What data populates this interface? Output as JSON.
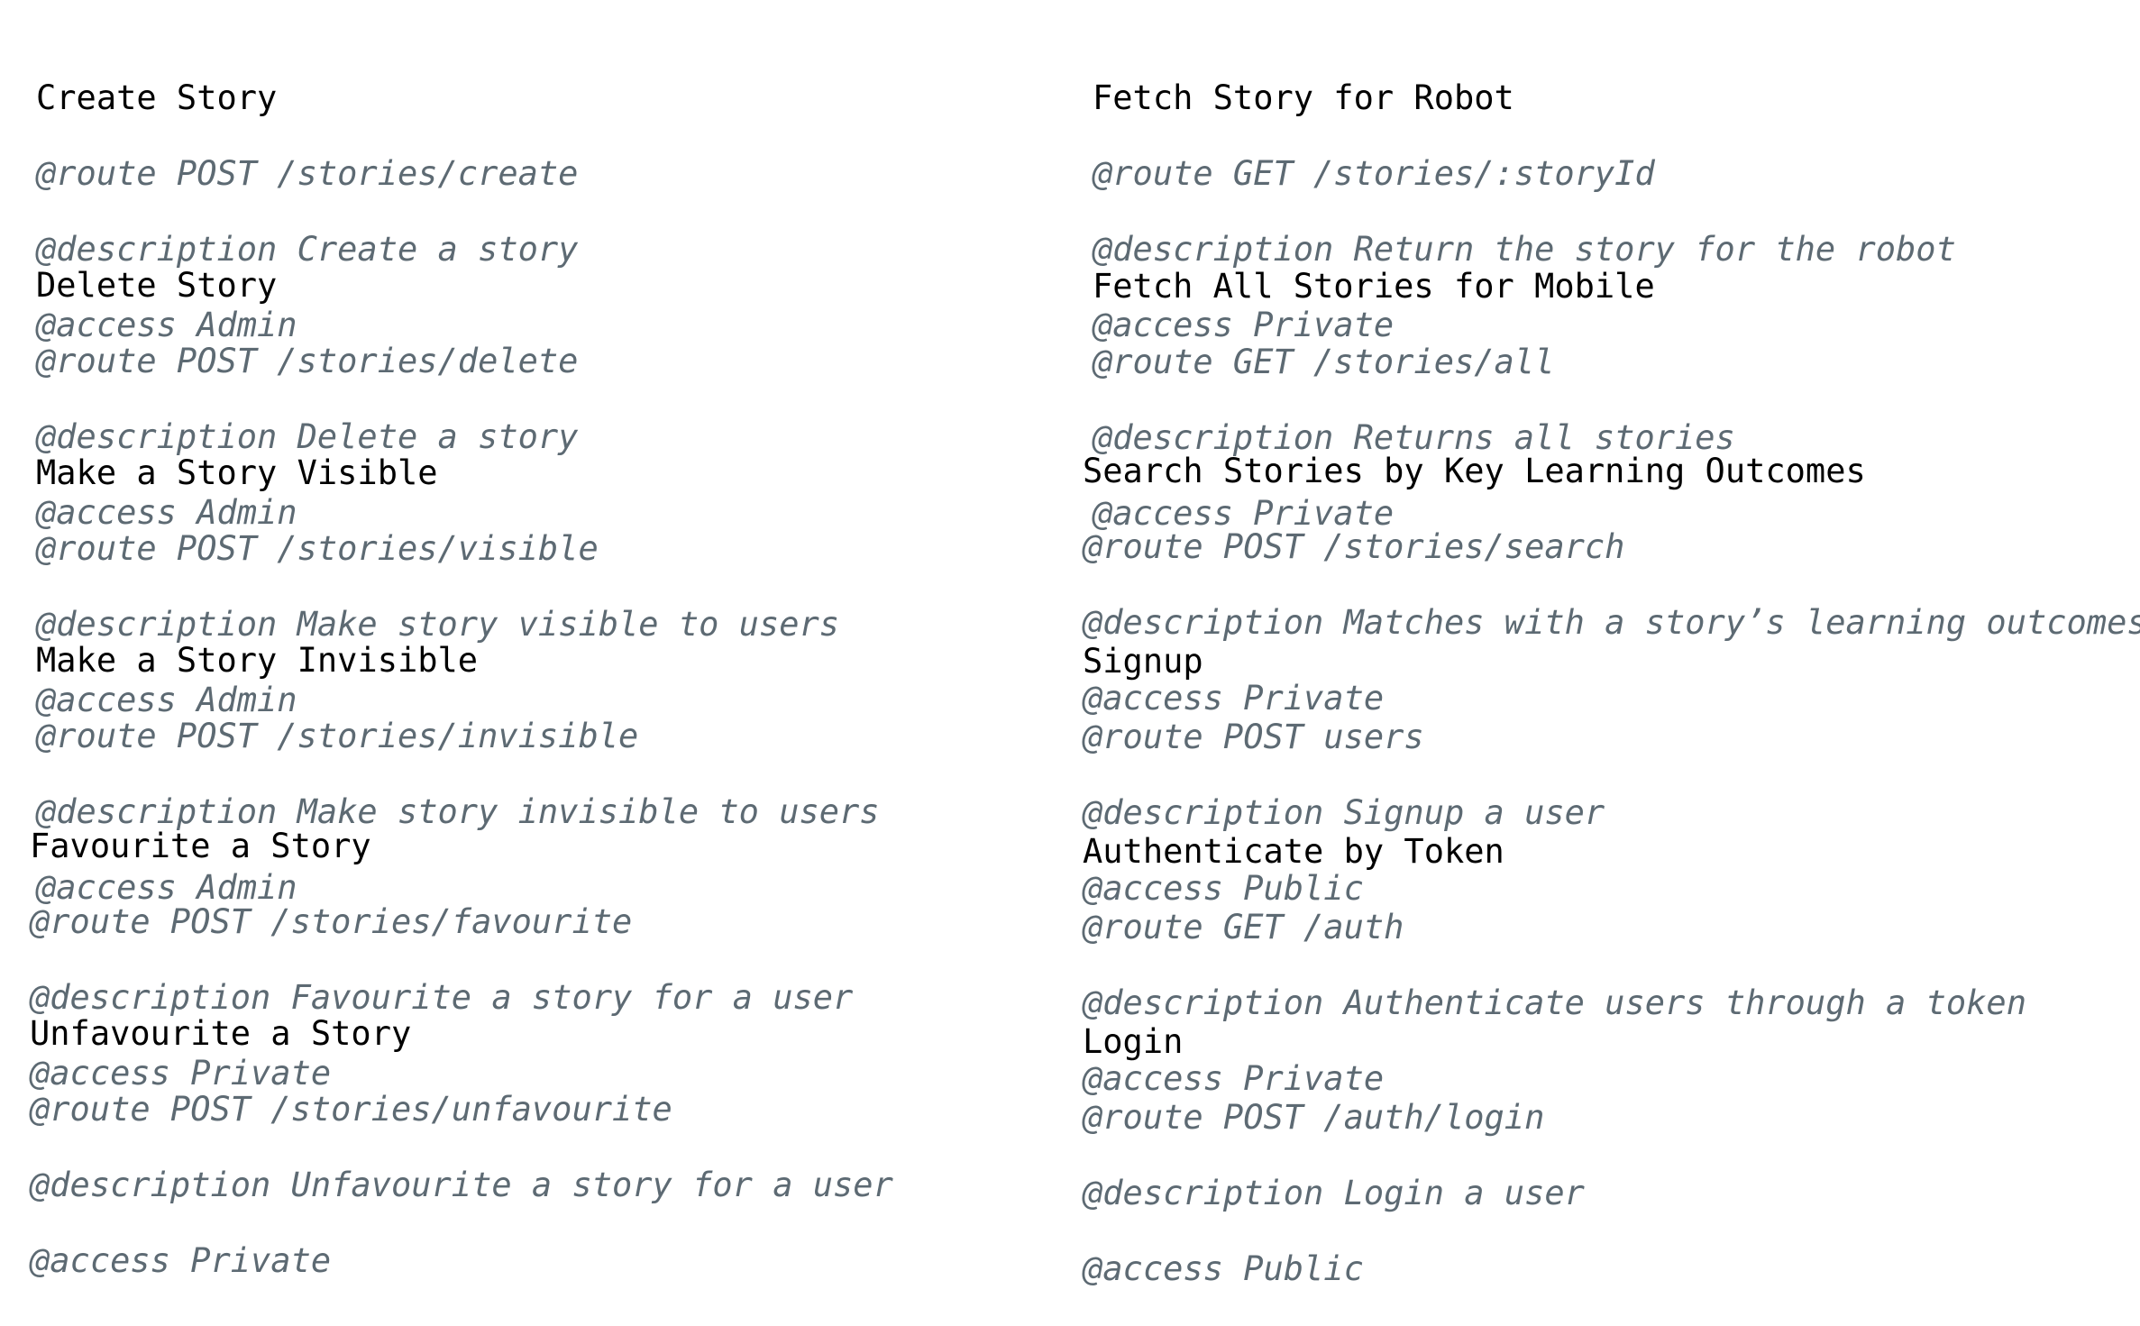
{
  "left_column": [
    {
      "title": "Create Story",
      "route": "@route POST /stories/create",
      "description": "@description Create a story",
      "access": "@access Admin"
    },
    {
      "title": "Delete Story",
      "route": "@route POST /stories/delete",
      "description": "@description Delete a story",
      "access": "@access Admin"
    },
    {
      "title": "Make a Story Visible",
      "route": "@route POST /stories/visible",
      "description": "@description Make story visible to users",
      "access": "@access Admin"
    },
    {
      "title": "Make a Story Invisible",
      "route": "@route POST /stories/invisible",
      "description": "@description Make story invisible to users",
      "access": "@access Admin"
    },
    {
      "title": "Favourite a Story",
      "route": "@route POST /stories/favourite",
      "description": "@description Favourite a story for a user",
      "access": "@access Private"
    },
    {
      "title": "Unfavourite a Story",
      "route": "@route POST /stories/unfavourite",
      "description": "@description Unfavourite a story for a user",
      "access": "@access Private"
    }
  ],
  "right_column": [
    {
      "title": "Fetch Story for Robot",
      "route": "@route GET /stories/:storyId",
      "description": "@description Return the story for the robot",
      "access": "@access Private"
    },
    {
      "title": "Fetch All Stories for Mobile",
      "route": "@route GET /stories/all",
      "description": "@description Returns all stories",
      "access": "@access Private"
    },
    {
      "title": "Search Stories by Key Learning Outcomes",
      "route": "@route POST /stories/search",
      "description": "@description Matches with a story’s learning outcomes",
      "access": "@access Private"
    },
    {
      "title": "Signup",
      "route": "@route POST users",
      "description": "@description Signup a user",
      "access": "@access Public"
    },
    {
      "title": "Authenticate by Token",
      "route": "@route GET /auth",
      "description": "@description Authenticate users through a token",
      "access": "@access Private"
    },
    {
      "title": "Login",
      "route": "@route POST /auth/login",
      "description": "@description Login a user",
      "access": "@access Public"
    }
  ]
}
